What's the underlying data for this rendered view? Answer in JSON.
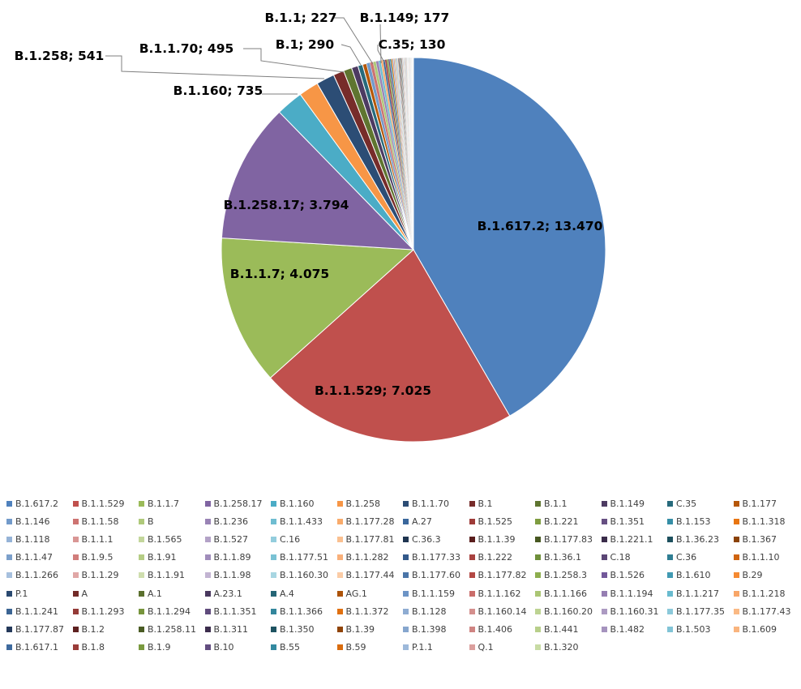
{
  "chart_data": {
    "type": "pie",
    "title": "",
    "slices": [
      {
        "name": "B.1.617.2",
        "value": 13470,
        "label": "B.1.617.2; 13.470",
        "color": "#4F81BD"
      },
      {
        "name": "B.1.1.529",
        "value": 7025,
        "label": "B.1.1.529; 7.025",
        "color": "#C0504D"
      },
      {
        "name": "B.1.1.7",
        "value": 4075,
        "label": "B.1.1.7; 4.075",
        "color": "#9BBB59"
      },
      {
        "name": "B.1.258.17",
        "value": 3794,
        "label": "B.1.258.17; 3.794",
        "color": "#8064A2"
      },
      {
        "name": "B.1.160",
        "value": 735,
        "label": "B.1.160; 735",
        "color": "#4BACC6"
      },
      {
        "name": "B.1.258",
        "value": 541,
        "label": "B.1.258; 541",
        "color": "#F79646"
      },
      {
        "name": "B.1.1.70",
        "value": 495,
        "label": "B.1.1.70; 495",
        "color": "#2C4D75"
      },
      {
        "name": "B.1",
        "value": 290,
        "label": "B.1; 290",
        "color": "#772C2A"
      },
      {
        "name": "B.1.1",
        "value": 227,
        "label": "B.1.1; 227",
        "color": "#5F7530"
      },
      {
        "name": "B.1.149",
        "value": 177,
        "label": "B.1.149; 177",
        "color": "#4D3B62"
      },
      {
        "name": "C.35",
        "value": 130,
        "label": "C.35; 130",
        "color": "#276A7C"
      },
      {
        "name": "B.1.177",
        "value": 110,
        "label": "",
        "color": "#B65708"
      },
      {
        "name": "B.1.146",
        "value": 95,
        "label": "",
        "color": "#729ACA"
      },
      {
        "name": "B.1.1.58",
        "value": 85,
        "label": "",
        "color": "#CD7371"
      },
      {
        "name": "B",
        "value": 78,
        "label": "",
        "color": "#AFC97A"
      },
      {
        "name": "B.1.236",
        "value": 70,
        "label": "",
        "color": "#9983B5"
      },
      {
        "name": "B.1.1.433",
        "value": 64,
        "label": "",
        "color": "#6FBDD1"
      },
      {
        "name": "B.1.177.28",
        "value": 58,
        "label": "",
        "color": "#F9AB6B"
      },
      {
        "name": "A.27",
        "value": 53,
        "label": "",
        "color": "#3A679C"
      },
      {
        "name": "B.1.525",
        "value": 48,
        "label": "",
        "color": "#9E3B38"
      },
      {
        "name": "B.1.221",
        "value": 44,
        "label": "",
        "color": "#7E9C40"
      },
      {
        "name": "B.1.351",
        "value": 40,
        "label": "",
        "color": "#664F82"
      },
      {
        "name": "B.1.153",
        "value": 37,
        "label": "",
        "color": "#358EA6"
      },
      {
        "name": "B.1.1.318",
        "value": 34,
        "label": "",
        "color": "#E87511"
      },
      {
        "name": "B.1.118",
        "value": 31,
        "label": "",
        "color": "#95B3D7"
      },
      {
        "name": "B.1.1.1",
        "value": 29,
        "label": "",
        "color": "#D99694"
      },
      {
        "name": "B.1.565",
        "value": 27,
        "label": "",
        "color": "#C3D69B"
      },
      {
        "name": "B.1.527",
        "value": 25,
        "label": "",
        "color": "#B3A2C7"
      },
      {
        "name": "C.16",
        "value": 23,
        "label": "",
        "color": "#93CDDD"
      },
      {
        "name": "B.1.177.81",
        "value": 21,
        "label": "",
        "color": "#FAC090"
      },
      {
        "name": "C.36.3",
        "value": 20,
        "label": "",
        "color": "#1F3551"
      },
      {
        "name": "B.1.1.39",
        "value": 19,
        "label": "",
        "color": "#5A1E1D"
      },
      {
        "name": "B.1.177.83",
        "value": 18,
        "label": "",
        "color": "#475821"
      },
      {
        "name": "B.1.221.1",
        "value": 17,
        "label": "",
        "color": "#3A2C4A"
      },
      {
        "name": "B.1.36.23",
        "value": 16,
        "label": "",
        "color": "#1D505E"
      },
      {
        "name": "B.1.367",
        "value": 15,
        "label": "",
        "color": "#8B4206"
      },
      {
        "name": "B.1.1.47",
        "value": 14,
        "label": "",
        "color": "#7CA0CB"
      },
      {
        "name": "B.1.9.5",
        "value": 13,
        "label": "",
        "color": "#D17D7B"
      },
      {
        "name": "B.1.91",
        "value": 12,
        "label": "",
        "color": "#B5CD85"
      },
      {
        "name": "B.1.1.89",
        "value": 12,
        "label": "",
        "color": "#A08DBB"
      },
      {
        "name": "B.1.177.51",
        "value": 11,
        "label": "",
        "color": "#7AC2D4"
      },
      {
        "name": "B.1.1.282",
        "value": 11,
        "label": "",
        "color": "#F9B07A"
      },
      {
        "name": "B.1.177.33",
        "value": 10,
        "label": "",
        "color": "#33598A"
      },
      {
        "name": "B.1.222",
        "value": 10,
        "label": "",
        "color": "#A8423F"
      },
      {
        "name": "B.1.36.1",
        "value": 9,
        "label": "",
        "color": "#6F8F3A"
      },
      {
        "name": "C.18",
        "value": 9,
        "label": "",
        "color": "#5B4675"
      },
      {
        "name": "C.36",
        "value": 9,
        "label": "",
        "color": "#2F7E93"
      },
      {
        "name": "B.1.1.10",
        "value": 8,
        "label": "",
        "color": "#CF6410"
      },
      {
        "name": "B.1.1.266",
        "value": 8,
        "label": "",
        "color": "#A7C0DE"
      },
      {
        "name": "B.1.1.29",
        "value": 8,
        "label": "",
        "color": "#E0A7A6"
      },
      {
        "name": "B.1.1.91",
        "value": 7,
        "label": "",
        "color": "#CFDEAE"
      },
      {
        "name": "B.1.1.98",
        "value": 7,
        "label": "",
        "color": "#C2B4D2"
      },
      {
        "name": "B.1.160.30",
        "value": 7,
        "label": "",
        "color": "#A8D6E2"
      },
      {
        "name": "B.1.177.44",
        "value": 6,
        "label": "",
        "color": "#FBCCA6"
      },
      {
        "name": "B.1.177.60",
        "value": 6,
        "label": "",
        "color": "#4A75A8"
      },
      {
        "name": "B.1.177.82",
        "value": 6,
        "label": "",
        "color": "#B34844"
      },
      {
        "name": "B.1.258.3",
        "value": 6,
        "label": "",
        "color": "#8DAE4E"
      },
      {
        "name": "B.1.526",
        "value": 5,
        "label": "",
        "color": "#72589A"
      },
      {
        "name": "B.1.610",
        "value": 5,
        "label": "",
        "color": "#419AB3"
      },
      {
        "name": "B.29",
        "value": 5,
        "label": "",
        "color": "#F58A32"
      },
      {
        "name": "P.1",
        "value": 5,
        "label": "",
        "color": "#2A4970"
      },
      {
        "name": "A",
        "value": 5,
        "label": "",
        "color": "#722A28"
      },
      {
        "name": "A.1",
        "value": 4,
        "label": "",
        "color": "#5B702E"
      },
      {
        "name": "A.23.1",
        "value": 4,
        "label": "",
        "color": "#49385E"
      },
      {
        "name": "A.4",
        "value": 4,
        "label": "",
        "color": "#256576"
      },
      {
        "name": "AG.1",
        "value": 4,
        "label": "",
        "color": "#AD5308"
      },
      {
        "name": "B.1.1.159",
        "value": 4,
        "label": "",
        "color": "#6C94C6"
      },
      {
        "name": "B.1.1.162",
        "value": 4,
        "label": "",
        "color": "#CA6D6A"
      },
      {
        "name": "B.1.1.166",
        "value": 3,
        "label": "",
        "color": "#ABC674"
      },
      {
        "name": "B.1.1.194",
        "value": 3,
        "label": "",
        "color": "#957EB2"
      },
      {
        "name": "B.1.1.217",
        "value": 3,
        "label": "",
        "color": "#69BBCF"
      },
      {
        "name": "B.1.1.218",
        "value": 3,
        "label": "",
        "color": "#F8A668"
      },
      {
        "name": "B.1.1.241",
        "value": 3,
        "label": "",
        "color": "#3B6493"
      },
      {
        "name": "B.1.1.293",
        "value": 3,
        "label": "",
        "color": "#943A37"
      },
      {
        "name": "B.1.1.294",
        "value": 3,
        "label": "",
        "color": "#77943C"
      },
      {
        "name": "B.1.1.351",
        "value": 3,
        "label": "",
        "color": "#5F4B7C"
      },
      {
        "name": "B.1.1.366",
        "value": 3,
        "label": "",
        "color": "#33869C"
      },
      {
        "name": "B.1.1.372",
        "value": 2,
        "label": "",
        "color": "#E07010"
      },
      {
        "name": "B.1.128",
        "value": 2,
        "label": "",
        "color": "#8EACD2"
      },
      {
        "name": "B.1.160.14",
        "value": 2,
        "label": "",
        "color": "#D48F8D"
      },
      {
        "name": "B.1.160.20",
        "value": 2,
        "label": "",
        "color": "#BDD392"
      },
      {
        "name": "B.1.160.31",
        "value": 2,
        "label": "",
        "color": "#AC9AC2"
      },
      {
        "name": "B.1.177.35",
        "value": 2,
        "label": "",
        "color": "#8BC9DA"
      },
      {
        "name": "B.1.177.43",
        "value": 2,
        "label": "",
        "color": "#FAB984"
      },
      {
        "name": "B.1.177.87",
        "value": 2,
        "label": "",
        "color": "#24395A"
      },
      {
        "name": "B.1.2",
        "value": 2,
        "label": "",
        "color": "#5E2120"
      },
      {
        "name": "B.1.258.11",
        "value": 2,
        "label": "",
        "color": "#4A5C24"
      },
      {
        "name": "B.1.311",
        "value": 2,
        "label": "",
        "color": "#3C2D4D"
      },
      {
        "name": "B.1.350",
        "value": 2,
        "label": "",
        "color": "#1E5361"
      },
      {
        "name": "B.1.39",
        "value": 2,
        "label": "",
        "color": "#904407"
      },
      {
        "name": "B.1.398",
        "value": 1,
        "label": "",
        "color": "#86A6CE"
      },
      {
        "name": "B.1.406",
        "value": 1,
        "label": "",
        "color": "#CF8482"
      },
      {
        "name": "B.1.441",
        "value": 1,
        "label": "",
        "color": "#B8CF8A"
      },
      {
        "name": "B.1.482",
        "value": 1,
        "label": "",
        "color": "#A593BE"
      },
      {
        "name": "B.1.503",
        "value": 1,
        "label": "",
        "color": "#81C4D6"
      },
      {
        "name": "B.1.609",
        "value": 1,
        "label": "",
        "color": "#F9B47E"
      },
      {
        "name": "B.1.617.1",
        "value": 1,
        "label": "",
        "color": "#3E6A9E"
      },
      {
        "name": "B.1.8",
        "value": 1,
        "label": "",
        "color": "#9A3C39"
      },
      {
        "name": "B.1.9",
        "value": 1,
        "label": "",
        "color": "#7A9A3F"
      },
      {
        "name": "B.10",
        "value": 1,
        "label": "",
        "color": "#624D80"
      },
      {
        "name": "B.55",
        "value": 1,
        "label": "",
        "color": "#3389A0"
      },
      {
        "name": "B.59",
        "value": 1,
        "label": "",
        "color": "#D96C0E"
      },
      {
        "name": "P.1.1",
        "value": 1,
        "label": "",
        "color": "#9DB9DA"
      },
      {
        "name": "Q.1",
        "value": 1,
        "label": "",
        "color": "#DB9F9D"
      },
      {
        "name": "B.1.320",
        "value": 1,
        "label": "",
        "color": "#C8DBA4"
      }
    ],
    "legend_position": "bottom"
  }
}
